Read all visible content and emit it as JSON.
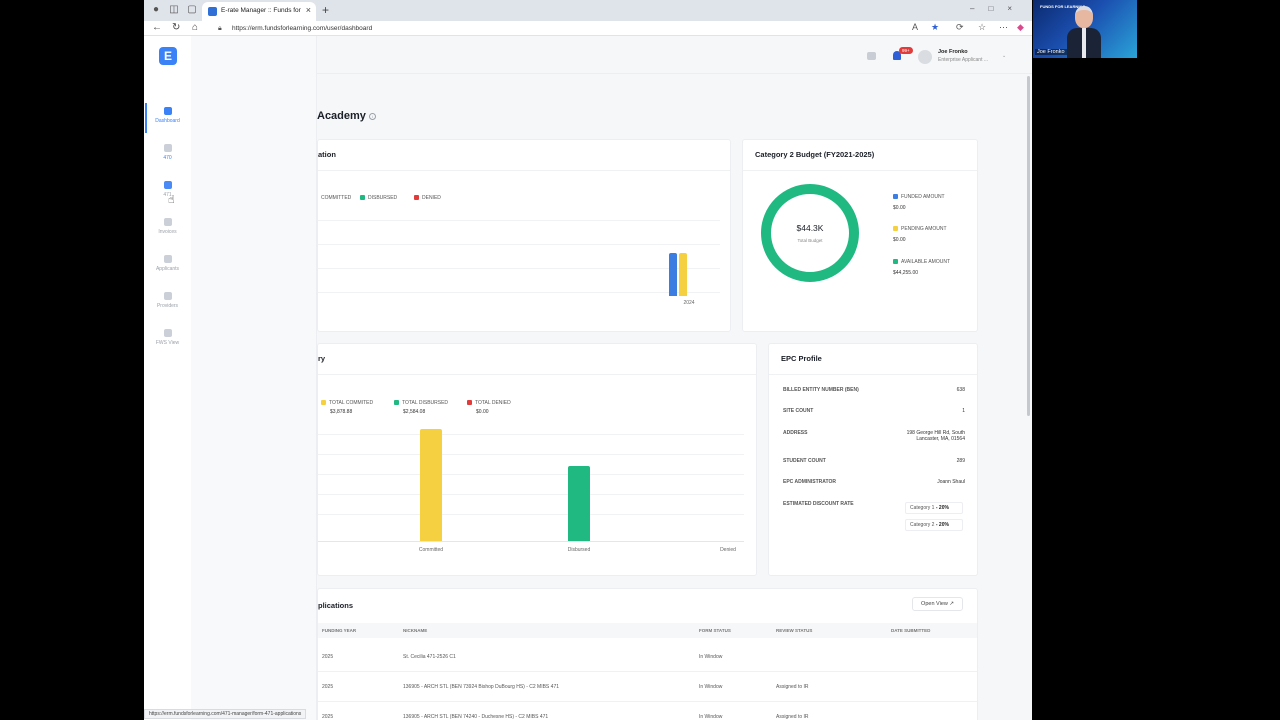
{
  "browser": {
    "tab_title": "E-rate Manager :: Funds for Learn",
    "url": "https://erm.fundsforlearning.com/user/dashboard",
    "status_url": "https://erm.fundsforlearning.com/471-manager/form-471-applications"
  },
  "sidebar": {
    "logo": "E",
    "items": [
      {
        "label": "Dashboard",
        "icon": "home-icon"
      },
      {
        "label": "470",
        "icon": "form-icon"
      },
      {
        "label": "471",
        "icon": "clipboard-icon"
      },
      {
        "label": "Invoices",
        "icon": "invoice-icon"
      },
      {
        "label": "Applicants",
        "icon": "users-icon"
      },
      {
        "label": "Providers",
        "icon": "providers-icon"
      },
      {
        "label": "FWS View",
        "icon": "document-icon"
      }
    ]
  },
  "header": {
    "badge": "99+",
    "user_name": "Joe Fronko",
    "user_role": "Enterprise Applicant ..."
  },
  "page": {
    "title": "Academy"
  },
  "funding_card": {
    "title": "ation",
    "legend": [
      {
        "label": "COMMITTED",
        "color": "#f5d142"
      },
      {
        "label": "DISBURSED",
        "color": "#1fb981"
      },
      {
        "label": "DENIED",
        "color": "#e23b3b"
      }
    ],
    "chart_data": {
      "type": "bar",
      "categories": [
        "2024"
      ],
      "series": [
        {
          "name": "",
          "color": "#3b7de0",
          "values": [
            1
          ]
        },
        {
          "name": "COMMITTED",
          "color": "#f5d142",
          "values": [
            1
          ]
        }
      ]
    }
  },
  "c2_card": {
    "title": "Category 2 Budget (FY2021-2025)",
    "center_value": "$44.3K",
    "center_label": "Total Budget",
    "legend": [
      {
        "label": "FUNDED AMOUNT",
        "value": "$0.00",
        "color": "#3b7de0"
      },
      {
        "label": "PENDING AMOUNT",
        "value": "$0.00",
        "color": "#f5d142"
      },
      {
        "label": "AVAILABLE AMOUNT",
        "value": "$44,255.00",
        "color": "#1fb981"
      }
    ]
  },
  "history_card": {
    "title": "ry",
    "legend": [
      {
        "label": "TOTAL COMMITED",
        "value": "$3,878.88",
        "color": "#f5d142"
      },
      {
        "label": "TOTAL DISBURSED",
        "value": "$2,584.08",
        "color": "#1fb981"
      },
      {
        "label": "TOTAL DENIED",
        "value": "$0.00",
        "color": "#e23b3b"
      }
    ],
    "chart_data": {
      "type": "bar",
      "categories": [
        "Committed",
        "Disbursed",
        "Denied"
      ],
      "values": [
        3878.88,
        2584.08,
        0.0
      ],
      "colors": [
        "#f5d142",
        "#1fb981",
        "#e23b3b"
      ]
    }
  },
  "epc_card": {
    "title": "EPC Profile",
    "rows": [
      {
        "label": "BILLED ENTITY NUMBER (BEN)",
        "value": "638"
      },
      {
        "label": "SITE COUNT",
        "value": "1"
      },
      {
        "label": "ADDRESS",
        "value": "198 George Hill Rd, South Lancaster, MA, 01564"
      },
      {
        "label": "STUDENT COUNT",
        "value": "289"
      },
      {
        "label": "EPC ADMINISTRATOR",
        "value": "Joann Shaul"
      },
      {
        "label": "ESTIMATED DISCOUNT RATE",
        "value": ""
      }
    ],
    "rates": [
      {
        "label": "Category 1",
        "value": "- 20%"
      },
      {
        "label": "Category 2",
        "value": "- 20%"
      }
    ]
  },
  "apps_card": {
    "title": "plications",
    "open_view": "Open View",
    "columns": [
      "FUNDING YEAR",
      "NICKNAME",
      "FORM STATUS",
      "REVIEW STATUS",
      "DATE SUBMITTED"
    ],
    "rows": [
      {
        "year": "2025",
        "nickname": "St. Cecilia 471-2526 C1",
        "form_status": "In Window",
        "review_status": ""
      },
      {
        "year": "2025",
        "nickname": "136905 - ARCH STL (BEN 73924 Bishop DuBourg HS) - C2 MIBS 471",
        "form_status": "In Window",
        "review_status": "Assigned to IR"
      },
      {
        "year": "2025",
        "nickname": "136905 - ARCH STL (BEN 74240 - Duchesne HS) - C2 MIBS 471",
        "form_status": "In Window",
        "review_status": "Assigned to IR"
      }
    ]
  },
  "webcam": {
    "brand": "FUNDS FOR LEARNING",
    "name": "Joe Fronko"
  },
  "colors": {
    "accent": "#3b82f6",
    "committed": "#f5d142",
    "disbursed": "#1fb981",
    "denied": "#e23b3b"
  }
}
